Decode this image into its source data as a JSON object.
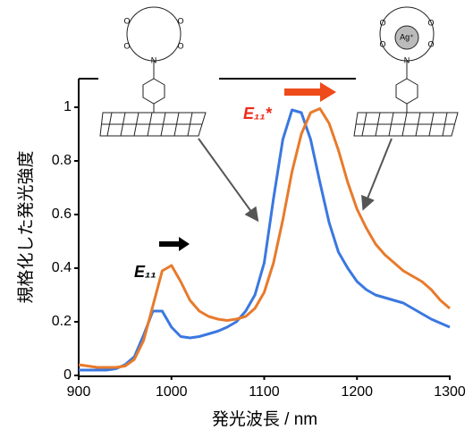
{
  "chart_data": {
    "type": "line",
    "y_label": "規格化した発光強度",
    "x_label": "発光波長 / nm",
    "x": [
      900,
      910,
      920,
      930,
      940,
      950,
      960,
      970,
      980,
      990,
      1000,
      1010,
      1020,
      1030,
      1040,
      1050,
      1060,
      1070,
      1080,
      1090,
      1100,
      1110,
      1120,
      1130,
      1140,
      1150,
      1160,
      1170,
      1180,
      1190,
      1200,
      1210,
      1220,
      1230,
      1240,
      1250,
      1260,
      1270,
      1280,
      1290,
      1300
    ],
    "series": [
      {
        "color": "#3a78e0",
        "values": [
          0.02,
          0.02,
          0.02,
          0.02,
          0.025,
          0.04,
          0.07,
          0.15,
          0.24,
          0.24,
          0.18,
          0.145,
          0.14,
          0.145,
          0.155,
          0.165,
          0.18,
          0.2,
          0.24,
          0.3,
          0.42,
          0.66,
          0.88,
          0.99,
          0.98,
          0.88,
          0.72,
          0.57,
          0.46,
          0.4,
          0.35,
          0.32,
          0.3,
          0.29,
          0.28,
          0.27,
          0.25,
          0.23,
          0.21,
          0.195,
          0.18
        ]
      },
      {
        "color": "#e87a2c",
        "values": [
          0.04,
          0.035,
          0.03,
          0.03,
          0.03,
          0.035,
          0.06,
          0.13,
          0.26,
          0.39,
          0.41,
          0.35,
          0.28,
          0.24,
          0.22,
          0.21,
          0.205,
          0.21,
          0.22,
          0.25,
          0.31,
          0.42,
          0.58,
          0.76,
          0.9,
          0.98,
          0.995,
          0.94,
          0.84,
          0.72,
          0.62,
          0.55,
          0.49,
          0.45,
          0.42,
          0.39,
          0.37,
          0.35,
          0.32,
          0.28,
          0.25
        ]
      }
    ],
    "xlim": [
      900,
      1300
    ],
    "ylim": [
      0,
      1.1
    ],
    "xticks": [
      900,
      1000,
      1100,
      1200,
      1300
    ],
    "yticks": [
      0,
      0.2,
      0.4,
      0.6,
      0.8,
      1
    ],
    "annotations": [
      "E₁₁",
      "E₁₁*"
    ],
    "molecule_labels": {
      "left": [
        "O",
        "O",
        "O",
        "O",
        "N"
      ],
      "right": [
        "O",
        "O",
        "O",
        "O",
        "N",
        "Ag⁺"
      ]
    }
  }
}
